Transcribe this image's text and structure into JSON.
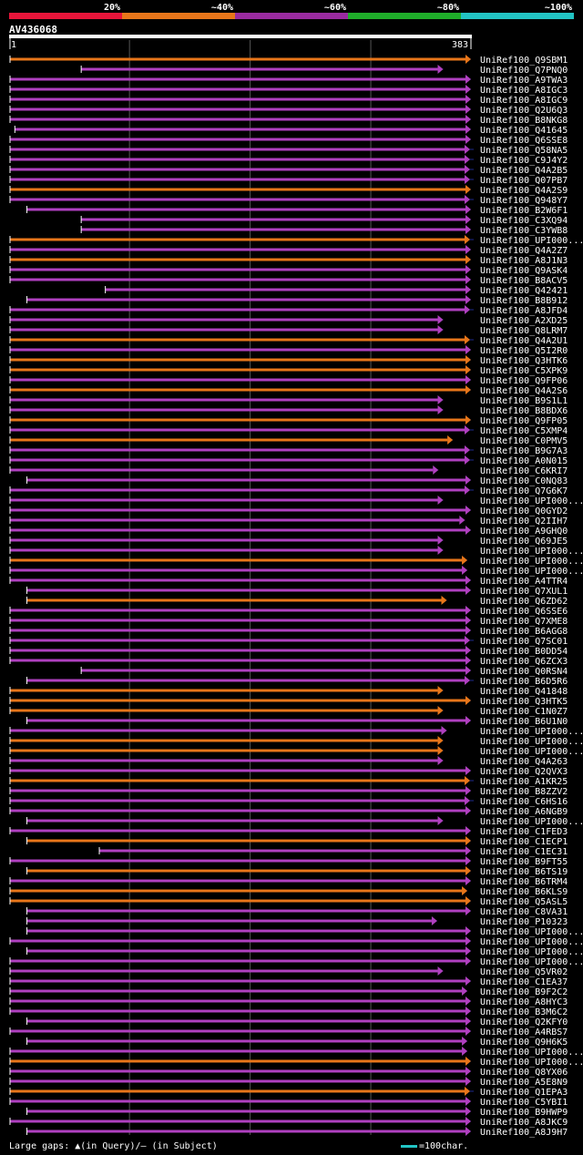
{
  "query": {
    "name": "AV436068",
    "start": "1",
    "end": "383",
    "length": 383
  },
  "legend": {
    "segments": [
      {
        "label": "20%",
        "color": "#e8153a"
      },
      {
        "label": "~40%",
        "color": "#e8761a"
      },
      {
        "label": "~60%",
        "color": "#9a2ba0"
      },
      {
        "label": "~80%",
        "color": "#1fae2a"
      },
      {
        "label": "~100%",
        "color": "#22c4c4"
      }
    ]
  },
  "footer": {
    "text": "Large gaps: ▲(in Query)/– (in Subject)",
    "scale_note": "=100char."
  },
  "colors": {
    "orange": "#e8761a",
    "purple": "#b040c0",
    "gap": "#1e2a8c",
    "marker": "#f4d060",
    "grid": "#555555"
  },
  "chart_data": {
    "type": "alignment",
    "x_range": [
      1,
      383
    ],
    "hits": [
      {
        "id": "UniRef100_Q9SBM1",
        "color": "orange",
        "start": 1,
        "end": 383
      },
      {
        "id": "UniRef100_Q7PNQ0",
        "color": "purple",
        "start": 60,
        "end": 360
      },
      {
        "id": "UniRef100_A9TWA3",
        "color": "purple",
        "start": 1,
        "end": 383
      },
      {
        "id": "UniRef100_A8IGC3",
        "color": "purple",
        "start": 1,
        "end": 383
      },
      {
        "id": "UniRef100_A8IGC9",
        "color": "purple",
        "start": 1,
        "end": 383
      },
      {
        "id": "UniRef100_Q2U6Q3",
        "color": "purple",
        "start": 1,
        "end": 383
      },
      {
        "id": "UniRef100_B8NKG8",
        "color": "purple",
        "start": 1,
        "end": 383
      },
      {
        "id": "UniRef100_Q41645",
        "color": "purple",
        "start": 5,
        "end": 383
      },
      {
        "id": "UniRef100_Q6SSE8",
        "color": "purple",
        "start": 1,
        "end": 383
      },
      {
        "id": "UniRef100_Q58NA5",
        "color": "purple",
        "start": 1,
        "end": 395
      },
      {
        "id": "UniRef100_C9J4Y2",
        "color": "purple",
        "start": 1,
        "end": 395
      },
      {
        "id": "UniRef100_Q4A2B5",
        "color": "purple",
        "start": 1,
        "end": 395
      },
      {
        "id": "UniRef100_Q07PB7",
        "color": "purple",
        "start": 1,
        "end": 390
      },
      {
        "id": "UniRef100_Q4A2S9",
        "color": "orange",
        "start": 1,
        "end": 383
      },
      {
        "id": "UniRef100_Q948Y7",
        "color": "purple",
        "start": 1,
        "end": 395
      },
      {
        "id": "UniRef100_B2W6F1",
        "color": "purple",
        "start": 15,
        "end": 383
      },
      {
        "id": "UniRef100_C3XQ94",
        "color": "purple",
        "start": 60,
        "end": 383
      },
      {
        "id": "UniRef100_C3YWB8",
        "color": "purple",
        "start": 60,
        "end": 383
      },
      {
        "id": "UniRef100_UPI000...",
        "color": "orange",
        "start": 1,
        "end": 395
      },
      {
        "id": "UniRef100_Q4A2Z7",
        "color": "purple",
        "start": 1,
        "end": 383
      },
      {
        "id": "UniRef100_A8J1N3",
        "color": "orange",
        "start": 1,
        "end": 383
      },
      {
        "id": "UniRef100_Q9ASK4",
        "color": "purple",
        "start": 1,
        "end": 383
      },
      {
        "id": "UniRef100_B8ACV5",
        "color": "purple",
        "start": 1,
        "end": 383
      },
      {
        "id": "UniRef100_Q42421",
        "color": "purple",
        "start": 80,
        "end": 383
      },
      {
        "id": "UniRef100_B8B912",
        "color": "purple",
        "start": 15,
        "end": 383
      },
      {
        "id": "UniRef100_A8JFD4",
        "color": "purple",
        "start": 1,
        "end": 390
      },
      {
        "id": "UniRef100_A2XD25",
        "color": "purple",
        "start": 1,
        "end": 360
      },
      {
        "id": "UniRef100_Q8LRM7",
        "color": "purple",
        "start": 1,
        "end": 360
      },
      {
        "id": "UniRef100_Q4A2U1",
        "color": "orange",
        "start": 1,
        "end": 395
      },
      {
        "id": "UniRef100_Q5I2R0",
        "color": "purple",
        "start": 1,
        "end": 383
      },
      {
        "id": "UniRef100_Q3HTK6",
        "color": "orange",
        "start": 1,
        "end": 383
      },
      {
        "id": "UniRef100_C5XPK9",
        "color": "orange",
        "start": 1,
        "end": 383
      },
      {
        "id": "UniRef100_Q9FP06",
        "color": "purple",
        "start": 1,
        "end": 383
      },
      {
        "id": "UniRef100_Q4A2S6",
        "color": "orange",
        "start": 1,
        "end": 383
      },
      {
        "id": "UniRef100_B9S1L1",
        "color": "purple",
        "start": 1,
        "end": 360
      },
      {
        "id": "UniRef100_B8BDX6",
        "color": "purple",
        "start": 1,
        "end": 360
      },
      {
        "id": "UniRef100_Q9FP05",
        "color": "orange",
        "start": 1,
        "end": 383
      },
      {
        "id": "UniRef100_C5XMP4",
        "color": "purple",
        "start": 1,
        "end": 395
      },
      {
        "id": "UniRef100_C0PMV5",
        "color": "orange",
        "start": 1,
        "end": 368
      },
      {
        "id": "UniRef100_B9G7A3",
        "color": "purple",
        "start": 1,
        "end": 395
      },
      {
        "id": "UniRef100_A0N015",
        "color": "purple",
        "start": 1,
        "end": 390
      },
      {
        "id": "UniRef100_C6KRI7",
        "color": "purple",
        "start": 1,
        "end": 356
      },
      {
        "id": "UniRef100_C0NQ83",
        "color": "purple",
        "start": 15,
        "end": 383
      },
      {
        "id": "UniRef100_Q7G6K7",
        "color": "purple",
        "start": 1,
        "end": 395
      },
      {
        "id": "UniRef100_UPI000...",
        "color": "purple",
        "start": 1,
        "end": 360
      },
      {
        "id": "UniRef100_Q0GYD2",
        "color": "purple",
        "start": 1,
        "end": 383
      },
      {
        "id": "UniRef100_Q2IIH7",
        "color": "purple",
        "start": 1,
        "end": 378
      },
      {
        "id": "UniRef100_A9GHQ0",
        "color": "purple",
        "start": 1,
        "end": 383
      },
      {
        "id": "UniRef100_Q69JE5",
        "color": "purple",
        "start": 1,
        "end": 360
      },
      {
        "id": "UniRef100_UPI000...",
        "color": "purple",
        "start": 1,
        "end": 360
      },
      {
        "id": "UniRef100_UPI000...",
        "color": "orange",
        "start": 1,
        "end": 380
      },
      {
        "id": "UniRef100_UPI000...",
        "color": "purple",
        "start": 1,
        "end": 380
      },
      {
        "id": "UniRef100_A4TTR4",
        "color": "purple",
        "start": 1,
        "end": 383
      },
      {
        "id": "UniRef100_Q7XUL1",
        "color": "purple",
        "start": 15,
        "end": 383
      },
      {
        "id": "UniRef100_Q6ZD62",
        "color": "orange",
        "start": 15,
        "end": 363
      },
      {
        "id": "UniRef100_Q6SSE6",
        "color": "purple",
        "start": 1,
        "end": 383
      },
      {
        "id": "UniRef100_Q7XME8",
        "color": "purple",
        "start": 1,
        "end": 383
      },
      {
        "id": "UniRef100_B6AGG8",
        "color": "purple",
        "start": 1,
        "end": 383
      },
      {
        "id": "UniRef100_Q7SC01",
        "color": "purple",
        "start": 1,
        "end": 395
      },
      {
        "id": "UniRef100_B0DD54",
        "color": "purple",
        "start": 1,
        "end": 383
      },
      {
        "id": "UniRef100_Q6ZCX3",
        "color": "purple",
        "start": 1,
        "end": 383
      },
      {
        "id": "UniRef100_Q0RSN4",
        "color": "purple",
        "start": 60,
        "end": 383
      },
      {
        "id": "UniRef100_B6D5R6",
        "color": "purple",
        "start": 15,
        "end": 395
      },
      {
        "id": "UniRef100_Q41848",
        "color": "orange",
        "start": 1,
        "end": 360
      },
      {
        "id": "UniRef100_Q3HTK5",
        "color": "orange",
        "start": 1,
        "end": 383
      },
      {
        "id": "UniRef100_C1N0Z7",
        "color": "orange",
        "start": 1,
        "end": 360
      },
      {
        "id": "UniRef100_B6U1N0",
        "color": "purple",
        "start": 15,
        "end": 383
      },
      {
        "id": "UniRef100_UPI000...",
        "color": "purple",
        "start": 1,
        "end": 363
      },
      {
        "id": "UniRef100_UPI000...",
        "color": "orange",
        "start": 1,
        "end": 360
      },
      {
        "id": "UniRef100_UPI000...",
        "color": "orange",
        "start": 1,
        "end": 360
      },
      {
        "id": "UniRef100_Q4A263",
        "color": "purple",
        "start": 1,
        "end": 360
      },
      {
        "id": "UniRef100_Q2QVX3",
        "color": "purple",
        "start": 1,
        "end": 383
      },
      {
        "id": "UniRef100_A1KR25",
        "color": "orange",
        "start": 1,
        "end": 395
      },
      {
        "id": "UniRef100_B8ZZV2",
        "color": "purple",
        "start": 1,
        "end": 383
      },
      {
        "id": "UniRef100_C6HS16",
        "color": "purple",
        "start": 1,
        "end": 395
      },
      {
        "id": "UniRef100_A6NGB9",
        "color": "purple",
        "start": 1,
        "end": 383
      },
      {
        "id": "UniRef100_UPI000...",
        "color": "purple",
        "start": 15,
        "end": 360
      },
      {
        "id": "UniRef100_C1FED3",
        "color": "purple",
        "start": 1,
        "end": 383
      },
      {
        "id": "UniRef100_C1ECP1",
        "color": "orange",
        "start": 15,
        "end": 383
      },
      {
        "id": "UniRef100_C1EC31",
        "color": "purple",
        "start": 75,
        "end": 383
      },
      {
        "id": "UniRef100_B9FT55",
        "color": "purple",
        "start": 1,
        "end": 383
      },
      {
        "id": "UniRef100_B6TS19",
        "color": "orange",
        "start": 15,
        "end": 383
      },
      {
        "id": "UniRef100_B6TRM4",
        "color": "purple",
        "start": 1,
        "end": 383
      },
      {
        "id": "UniRef100_B6KLS9",
        "color": "orange",
        "start": 1,
        "end": 380
      },
      {
        "id": "UniRef100_Q5ASL5",
        "color": "orange",
        "start": 1,
        "end": 383
      },
      {
        "id": "UniRef100_C8VA31",
        "color": "purple",
        "start": 15,
        "end": 383
      },
      {
        "id": "UniRef100_P10323",
        "color": "purple",
        "start": 15,
        "end": 355
      },
      {
        "id": "UniRef100_UPI000...",
        "color": "purple",
        "start": 15,
        "end": 383
      },
      {
        "id": "UniRef100_UPI000...",
        "color": "purple",
        "start": 1,
        "end": 383
      },
      {
        "id": "UniRef100_UPI000...",
        "color": "purple",
        "start": 15,
        "end": 383
      },
      {
        "id": "UniRef100_UPI000...",
        "color": "purple",
        "start": 1,
        "end": 383
      },
      {
        "id": "UniRef100_Q5VR02",
        "color": "purple",
        "start": 1,
        "end": 360
      },
      {
        "id": "UniRef100_C1EA37",
        "color": "purple",
        "start": 1,
        "end": 383
      },
      {
        "id": "UniRef100_B9F2C2",
        "color": "purple",
        "start": 1,
        "end": 380
      },
      {
        "id": "UniRef100_A8HYC3",
        "color": "purple",
        "start": 1,
        "end": 383
      },
      {
        "id": "UniRef100_B3M6C2",
        "color": "purple",
        "start": 1,
        "end": 383
      },
      {
        "id": "UniRef100_Q2KFY0",
        "color": "purple",
        "start": 15,
        "end": 383
      },
      {
        "id": "UniRef100_A4RBS7",
        "color": "purple",
        "start": 1,
        "end": 383
      },
      {
        "id": "UniRef100_Q9H6K5",
        "color": "purple",
        "start": 15,
        "end": 380
      },
      {
        "id": "UniRef100_UPI000...",
        "color": "purple",
        "start": 1,
        "end": 380
      },
      {
        "id": "UniRef100_UPI000...",
        "color": "orange",
        "start": 1,
        "end": 383
      },
      {
        "id": "UniRef100_Q8YX06",
        "color": "purple",
        "start": 1,
        "end": 383
      },
      {
        "id": "UniRef100_A5E8N9",
        "color": "purple",
        "start": 1,
        "end": 383
      },
      {
        "id": "UniRef100_Q1EPA3",
        "color": "orange",
        "start": 1,
        "end": 395
      },
      {
        "id": "UniRef100_C5YBI1",
        "color": "purple",
        "start": 1,
        "end": 383
      },
      {
        "id": "UniRef100_B9HWP9",
        "color": "purple",
        "start": 15,
        "end": 383
      },
      {
        "id": "UniRef100_A8JKC9",
        "color": "purple",
        "start": 1,
        "end": 383
      },
      {
        "id": "UniRef100_A8J9H7",
        "color": "purple",
        "start": 15,
        "end": 383
      }
    ]
  }
}
